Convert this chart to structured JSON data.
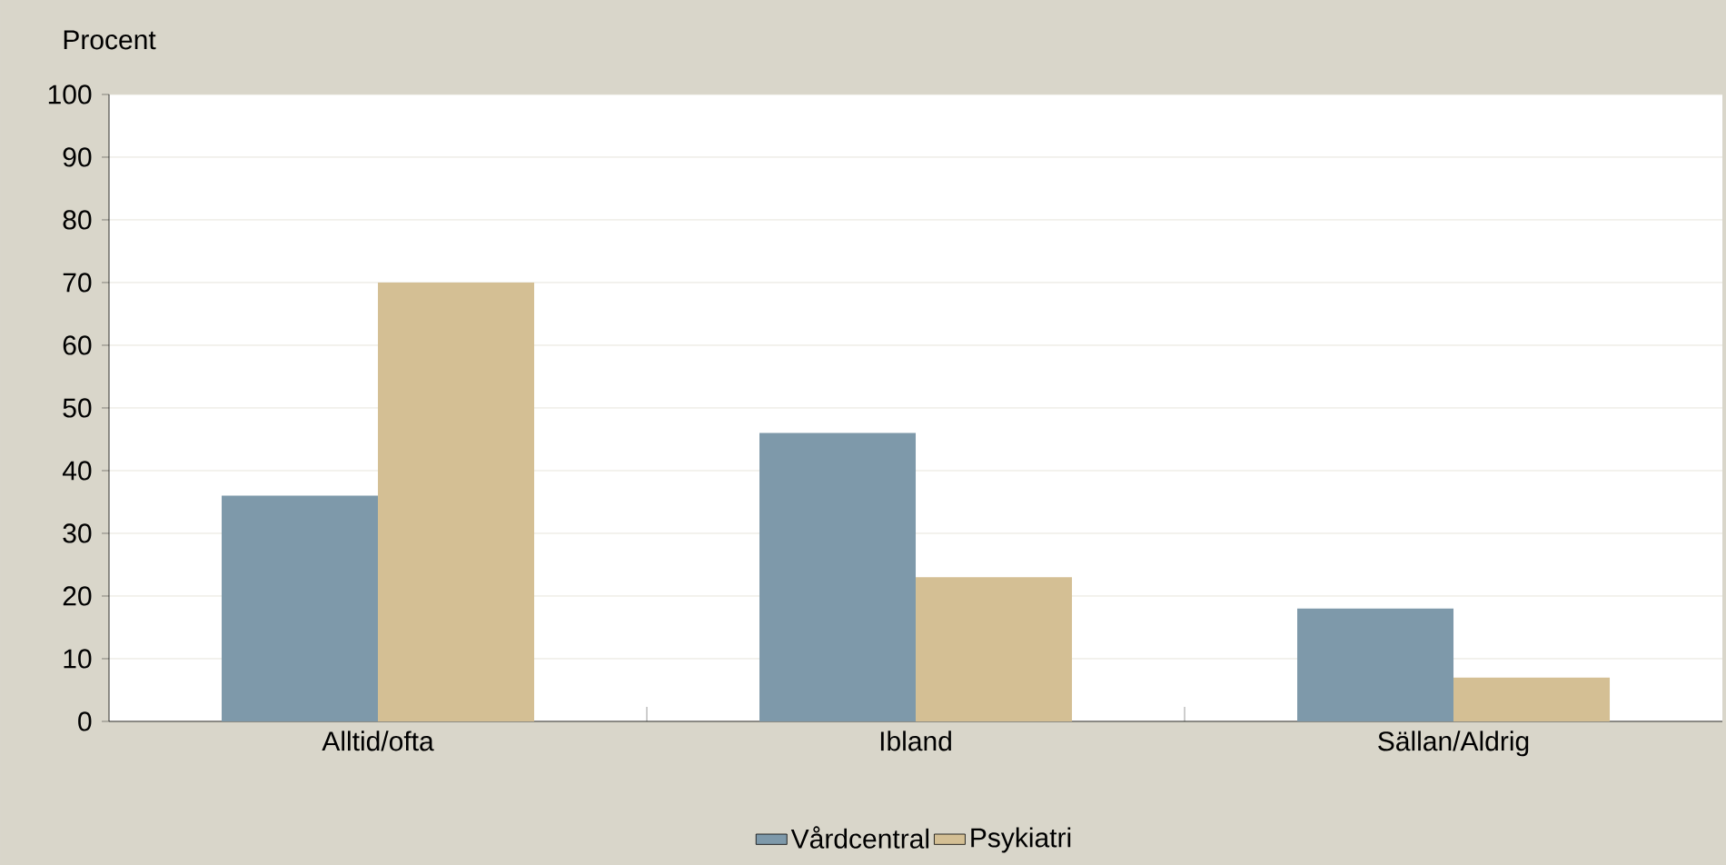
{
  "chart_data": {
    "type": "bar",
    "ylabel": "Procent",
    "categories": [
      "Alltid/ofta",
      "Ibland",
      "Sällan/Aldrig"
    ],
    "series": [
      {
        "name": "Vårdcentral",
        "color": "#7e99aa",
        "values": [
          36,
          46,
          18
        ]
      },
      {
        "name": "Psykiatri",
        "color": "#d4bf94",
        "values": [
          70,
          23,
          7
        ]
      }
    ],
    "ylim": [
      0,
      100
    ],
    "yticks": [
      0,
      10,
      20,
      30,
      40,
      50,
      60,
      70,
      80,
      90,
      100
    ],
    "grid": "y",
    "legend": "bottom"
  }
}
